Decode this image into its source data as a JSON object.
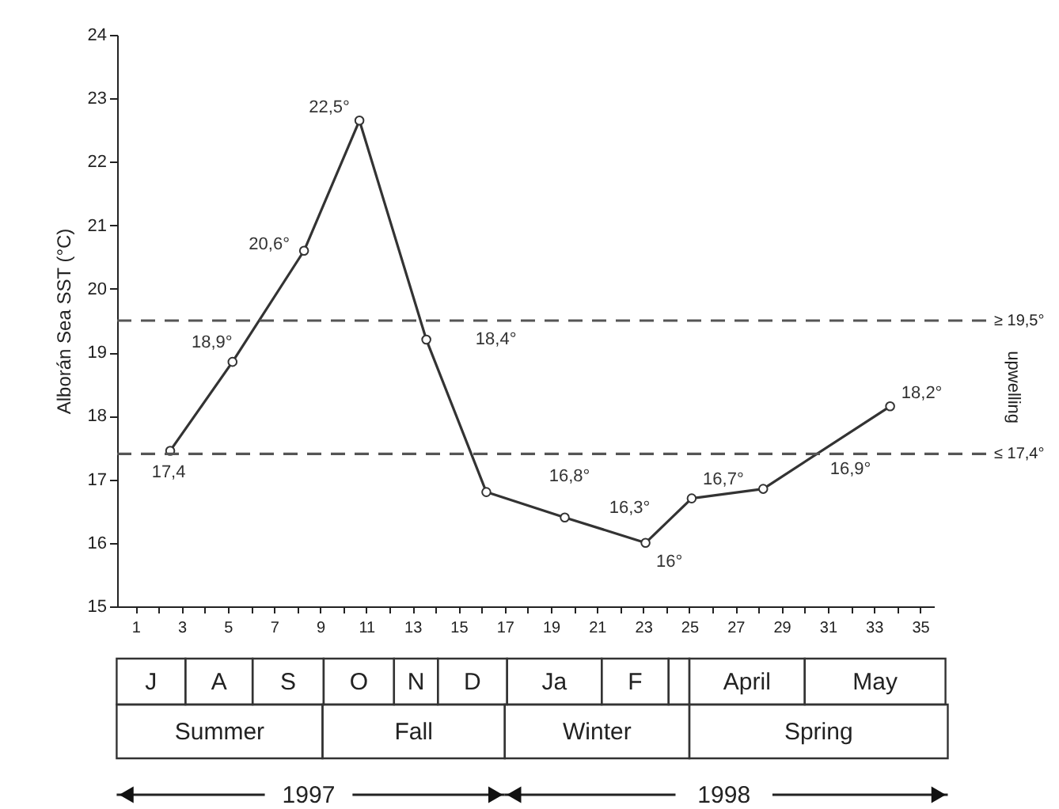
{
  "chart_data": {
    "type": "line",
    "ylabel": "Alborán Sea SST (°C)",
    "x": [
      2.5,
      5.2,
      8.3,
      10.7,
      13.6,
      16.2,
      19.6,
      23.1,
      25.1,
      28.2,
      33.7
    ],
    "series": [
      {
        "color": "#333333",
        "values": [
          17.45,
          18.85,
          20.6,
          22.65,
          19.2,
          16.8,
          16.4,
          16.0,
          16.7,
          16.85,
          18.15
        ]
      }
    ],
    "xlim": [
      0.2,
      35.6
    ],
    "xticks": [
      1,
      {
        "value": 2,
        "label": null
      },
      3,
      {
        "value": 4,
        "label": null
      },
      5,
      {
        "value": 6,
        "label": null
      },
      7,
      {
        "value": 8,
        "label": null
      },
      9,
      {
        "value": 10,
        "label": null
      },
      11,
      {
        "value": 12,
        "label": null
      },
      13,
      {
        "value": 14,
        "label": null
      },
      15,
      {
        "value": 16,
        "label": null
      },
      17,
      {
        "value": 18,
        "label": null
      },
      19,
      {
        "value": 20,
        "label": null
      },
      21,
      {
        "value": 22,
        "label": null
      },
      23,
      {
        "value": 24,
        "label": null
      },
      25,
      {
        "value": 26,
        "label": null
      },
      27,
      {
        "value": 28,
        "label": null
      },
      29,
      {
        "value": 30,
        "label": null
      },
      31,
      {
        "value": 32,
        "label": null
      },
      33,
      {
        "value": 34,
        "label": null
      },
      35
    ],
    "ylim": [
      15,
      24
    ],
    "yticks": [
      15,
      16,
      17,
      18,
      19,
      20,
      21,
      22,
      23,
      24
    ],
    "grid": false,
    "marker": "circle",
    "line_style": "solid",
    "ref_lines": [
      {
        "axis": "y",
        "value": 19.5,
        "label": "≥ 19,5°",
        "color": "#555555",
        "line_style": "dashed"
      },
      {
        "axis": "y",
        "value": 17.4,
        "label": "≤ 17,4°",
        "color": "#555555",
        "line_style": "dashed"
      }
    ],
    "annotations": [
      "J",
      "A",
      "S",
      "O",
      "N",
      "D",
      "Ja",
      "F",
      "April",
      "May",
      "Summer",
      "Fall",
      "Winter",
      "Spring",
      "1997",
      "1998",
      "upwelling",
      {
        "text": "17,4",
        "x": 2.5,
        "y": 17.45
      },
      {
        "text": "18,9°",
        "x": 5.2,
        "y": 18.85
      },
      {
        "text": "20,6°",
        "x": 8.3,
        "y": 20.6
      },
      {
        "text": "22,5°",
        "x": 10.7,
        "y": 22.65
      },
      {
        "text": "18,4°",
        "x": 13.6,
        "y": 19.2
      },
      {
        "text": "16,8°",
        "x": 19.6,
        "y": 16.4
      },
      {
        "text": "16,3°",
        "x": 23.1,
        "y": 16.0
      },
      {
        "text": "16°",
        "x": 23.1,
        "y": 16.0
      },
      {
        "text": "16,7°",
        "x": 25.1,
        "y": 16.7
      },
      {
        "text": "16,9°",
        "x": 31.5,
        "y": 17.63
      },
      {
        "text": "18,2°",
        "x": 33.7,
        "y": 18.15
      }
    ]
  }
}
